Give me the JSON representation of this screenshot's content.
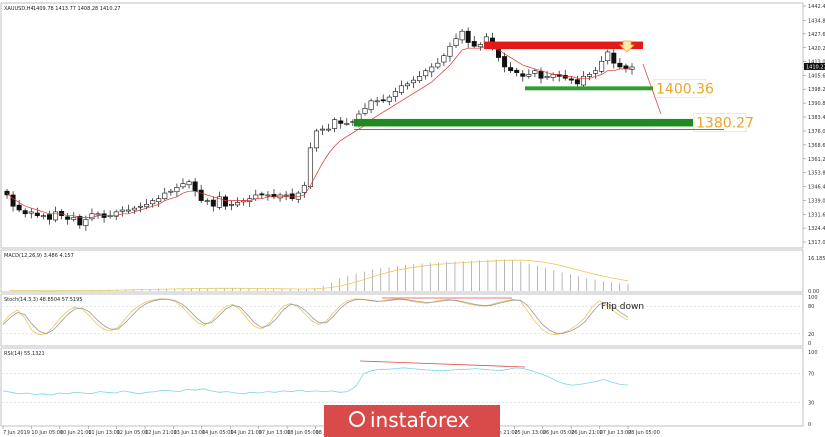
{
  "chart_data": [
    {
      "type": "candlestick",
      "title": "XAUUSD,H4",
      "ohlc_header": "1409.78 1413.77 1408.28 1410.27",
      "ylim": [
        1317.0,
        1442.4
      ],
      "y_ticks": [
        "1442.40",
        "1434.80",
        "1427.60",
        "1420.20",
        "1413.00",
        "1405.60",
        "1398.20",
        "1390.80",
        "1383.40",
        "1376.00",
        "1368.60",
        "1361.20",
        "1353.80",
        "1346.40",
        "1339.00",
        "1331.60",
        "1324.40",
        "1317.00"
      ],
      "current_price_label": "1410.27",
      "x_labels": [
        "7 Jun 2019",
        "10 Jun 05:00",
        "10 Jun 21:00",
        "11 Jun 13:00",
        "12 Jun 05:00",
        "12 Jun 21:00",
        "13 Jun 13:00",
        "14 Jun 05:00",
        "14 Jun 21:00",
        "17 Jun 13:00",
        "18 Jun 05:00",
        "18 Jun 21:00",
        "19 Jun 13:00",
        "20 Jun 05:00",
        "20 Jun 21:00",
        "21 Jun 13:00",
        "24 Jun 05:00",
        "24 Jun 21:00",
        "25 Jun 13:00",
        "26 Jun 05:00",
        "26 Jun 21:00",
        "27 Jun 13:00",
        "28 Jun 05:00"
      ],
      "close_series": [
        1342,
        1336,
        1334,
        1332,
        1333,
        1331,
        1331,
        1329,
        1333,
        1331,
        1329,
        1330,
        1326,
        1329,
        1332,
        1332,
        1330,
        1331,
        1333,
        1334,
        1334,
        1335,
        1336,
        1337,
        1339,
        1340,
        1343,
        1344,
        1346,
        1348,
        1349,
        1344,
        1339,
        1339,
        1336,
        1341,
        1336,
        1337,
        1338,
        1339,
        1340,
        1342,
        1342,
        1342,
        1341,
        1342,
        1342,
        1340,
        1343,
        1347,
        1367,
        1376,
        1377,
        1377,
        1382,
        1380,
        1380,
        1381,
        1385,
        1388,
        1392,
        1392,
        1392,
        1394,
        1397,
        1400,
        1401,
        1403,
        1405,
        1408,
        1410,
        1412,
        1416,
        1421,
        1425,
        1429,
        1423,
        1421,
        1422,
        1426,
        1420,
        1415,
        1410,
        1408,
        1407,
        1405,
        1406,
        1408,
        1404,
        1405,
        1406,
        1405,
        1404,
        1403,
        1401,
        1405,
        1406,
        1408,
        1413,
        1418,
        1412,
        1410,
        1409,
        1410
      ],
      "ma_series": [
        1343,
        1340,
        1338,
        1336,
        1335,
        1334,
        1333,
        1332,
        1332,
        1332,
        1331,
        1331,
        1330,
        1330,
        1330,
        1331,
        1331,
        1331,
        1331,
        1332,
        1332,
        1333,
        1334,
        1335,
        1336,
        1337,
        1339,
        1340,
        1341,
        1343,
        1344,
        1344,
        1343,
        1342,
        1341,
        1340,
        1339,
        1339,
        1339,
        1339,
        1339,
        1340,
        1340,
        1341,
        1341,
        1341,
        1341,
        1341,
        1341,
        1342,
        1347,
        1353,
        1359,
        1364,
        1368,
        1371,
        1373,
        1375,
        1377,
        1379,
        1382,
        1384,
        1386,
        1388,
        1390,
        1392,
        1394,
        1396,
        1398,
        1400,
        1402,
        1405,
        1408,
        1411,
        1415,
        1419,
        1420,
        1420,
        1420,
        1421,
        1420,
        1419,
        1417,
        1415,
        1413,
        1411,
        1410,
        1409,
        1408,
        1407,
        1406,
        1406,
        1405,
        1405,
        1404,
        1404,
        1404,
        1405,
        1406,
        1408,
        1408,
        1409,
        1409,
        1409
      ],
      "zones": [
        {
          "name": "resistance",
          "from": 1419.5,
          "to": 1423.5,
          "color": "#e21a1a"
        },
        {
          "name": "support-1",
          "from": 1397.6,
          "to": 1399.7,
          "color": "#2e9e2e",
          "label": "1400.36"
        },
        {
          "name": "support-2",
          "from": 1378.4,
          "to": 1382.4,
          "color": "#1f8a1f",
          "label": "1380.27"
        }
      ]
    },
    {
      "type": "histogram",
      "title": "MACD(12,26,9) 3.486 4.157",
      "y_ticks": [
        "16.185",
        "0.00"
      ],
      "values": [
        0.2,
        0.1,
        0.1,
        0.1,
        0.1,
        0.1,
        0.2,
        0.2,
        0.3,
        0.3,
        0.4,
        0.5,
        0.6,
        0.7,
        0.8,
        0.8,
        0.9,
        1.0,
        1.1,
        1.2,
        1.3,
        1.3,
        1.4,
        1.4,
        1.3,
        1.3,
        1.3,
        1.2,
        1.2,
        1.1,
        1.1,
        1.0,
        1.0,
        1.0,
        0.9,
        0.9,
        1.1,
        1.5,
        2.5,
        4,
        6,
        7.5,
        8.5,
        9.5,
        10.5,
        11.2,
        11.8,
        12.3,
        12.8,
        13.2,
        13.5,
        13.8,
        14,
        14.2,
        14.4,
        14.6,
        14.8,
        15,
        15.2,
        15.4,
        15.5,
        15.2,
        14.6,
        13.5,
        12.5,
        11.3,
        10.2,
        9.1,
        8.1,
        7.1,
        6.2,
        5.5,
        4.8,
        4.2,
        3.8,
        3.5
      ]
    },
    {
      "type": "line",
      "title": "Stoch(14,3,3) 48.8504 57.5195",
      "y_ticks": [
        "100",
        "80",
        "20",
        "0"
      ],
      "annotation": "Flip down",
      "series": [
        {
          "values": [
            45,
            62,
            72,
            55,
            28,
            18,
            20,
            35,
            55,
            70,
            78,
            74,
            60,
            42,
            30,
            26,
            34,
            52,
            70,
            82,
            90,
            94,
            96,
            95,
            90,
            78,
            60,
            45,
            38,
            48,
            66,
            80,
            84,
            72,
            52,
            36,
            30,
            42,
            62,
            80,
            86,
            80,
            64,
            48,
            40,
            48,
            66,
            82,
            92,
            96,
            95,
            92,
            90,
            92,
            95,
            96,
            94,
            90,
            88,
            86,
            90,
            93,
            95,
            92,
            88,
            84,
            82,
            80,
            84,
            88,
            92,
            95,
            92,
            70,
            48,
            30,
            20,
            18,
            22,
            30,
            40,
            55,
            78,
            92,
            84,
            70,
            58,
            50
          ]
        },
        {
          "values": [
            40,
            55,
            66,
            62,
            42,
            26,
            20,
            28,
            45,
            62,
            74,
            76,
            68,
            52,
            38,
            30,
            30,
            44,
            60,
            76,
            86,
            92,
            95,
            95,
            92,
            84,
            70,
            54,
            42,
            44,
            58,
            74,
            82,
            78,
            62,
            44,
            34,
            38,
            52,
            72,
            84,
            82,
            72,
            56,
            44,
            44,
            58,
            76,
            88,
            94,
            95,
            93,
            91,
            91,
            93,
            95,
            95,
            92,
            90,
            88,
            89,
            91,
            93,
            93,
            90,
            86,
            83,
            81,
            82,
            86,
            90,
            93,
            93,
            82,
            62,
            42,
            28,
            21,
            21,
            26,
            34,
            46,
            66,
            84,
            88,
            78,
            66,
            56
          ]
        }
      ]
    },
    {
      "type": "line",
      "title": "RSI(14) 55.1321",
      "y_ticks": [
        "100",
        "70",
        "30",
        "0"
      ],
      "values": [
        46,
        44,
        42,
        43,
        41,
        42,
        40,
        43,
        42,
        44,
        43,
        42,
        45,
        44,
        43,
        46,
        44,
        42,
        44,
        45,
        47,
        46,
        45,
        48,
        47,
        49,
        46,
        44,
        45,
        43,
        42,
        44,
        43,
        45,
        44,
        46,
        45,
        47,
        45,
        46,
        45,
        46,
        44,
        45,
        52,
        70,
        74,
        76,
        76,
        77,
        78,
        77,
        76,
        75,
        74,
        74,
        75,
        76,
        76,
        77,
        76,
        75,
        74,
        76,
        78,
        77,
        74,
        70,
        66,
        60,
        56,
        54,
        55,
        57,
        59,
        62,
        58,
        55,
        54
      ]
    }
  ],
  "logo": {
    "text": "instaforex"
  }
}
